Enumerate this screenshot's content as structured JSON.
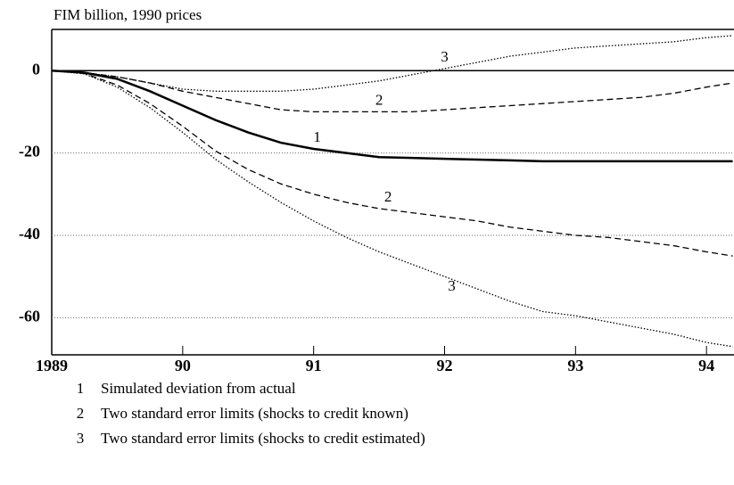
{
  "chart_data": {
    "type": "line",
    "title": "FIM billion, 1990 prices",
    "x": [
      1989,
      1989.25,
      1989.5,
      1989.75,
      1990,
      1990.25,
      1990.5,
      1990.75,
      1991,
      1991.25,
      1991.5,
      1991.75,
      1992,
      1992.25,
      1992.5,
      1992.75,
      1993,
      1993.25,
      1993.5,
      1993.75,
      1994,
      1994.2
    ],
    "series": [
      {
        "label": "1",
        "style": "solid",
        "color": "#000000",
        "values": [
          0,
          -0.5,
          -2,
          -5,
          -8.5,
          -12,
          -15,
          -17.5,
          -19,
          -20,
          -21,
          -21.2,
          -21.4,
          -21.6,
          -21.8,
          -22,
          -22,
          -22,
          -22,
          -22,
          -22,
          -22
        ]
      },
      {
        "label": "2",
        "style": "dashed",
        "color": "#000000",
        "values": [
          0,
          -0.5,
          -1.5,
          -3,
          -5,
          -6.5,
          -8,
          -9.5,
          -10,
          -10,
          -10,
          -10,
          -9.5,
          -9,
          -8.5,
          -8,
          -7.5,
          -7,
          -6.5,
          -5.5,
          -4,
          -3
        ]
      },
      {
        "label": "2",
        "style": "dashed",
        "color": "#000000",
        "values": [
          0,
          -0.7,
          -3.5,
          -8,
          -13.5,
          -19.5,
          -24,
          -27.5,
          -30,
          -32,
          -33.5,
          -34.5,
          -35.5,
          -36.5,
          -38,
          -39,
          -40,
          -40.5,
          -41.5,
          -42.5,
          -44,
          -45
        ]
      },
      {
        "label": "3",
        "style": "dotted",
        "color": "#000000",
        "values": [
          0,
          -0.5,
          -1.5,
          -3,
          -4.5,
          -5,
          -5,
          -5,
          -4.5,
          -3.5,
          -2.5,
          -1,
          0.5,
          2,
          3.5,
          4.5,
          5.5,
          6,
          6.5,
          7,
          8,
          8.5
        ]
      },
      {
        "label": "3",
        "style": "dotted",
        "color": "#000000",
        "values": [
          0,
          -0.8,
          -4,
          -9,
          -15,
          -21.5,
          -27,
          -32,
          -36.5,
          -40.5,
          -44,
          -47,
          -50,
          -53,
          -56,
          -58.5,
          -59.5,
          -61,
          -62.5,
          -64,
          -66,
          -67
        ]
      }
    ],
    "legend": [
      {
        "key": "1",
        "text": "Simulated deviation from actual"
      },
      {
        "key": "2",
        "text": "Two standard error limits (shocks to credit known)"
      },
      {
        "key": "3",
        "text": "Two standard error limits (shocks to credit estimated)"
      }
    ],
    "xlim": [
      1989,
      1994.21
    ],
    "ylim": [
      -69,
      10
    ],
    "xticks": [
      1989,
      {
        "value": 1990,
        "label": "90"
      },
      {
        "value": 1991,
        "label": "91"
      },
      {
        "value": 1992,
        "label": "92"
      },
      {
        "value": 1993,
        "label": "93"
      },
      {
        "value": 1994,
        "label": "94"
      }
    ],
    "yticks": [
      0,
      -20,
      -40,
      -60
    ],
    "grid": true
  }
}
